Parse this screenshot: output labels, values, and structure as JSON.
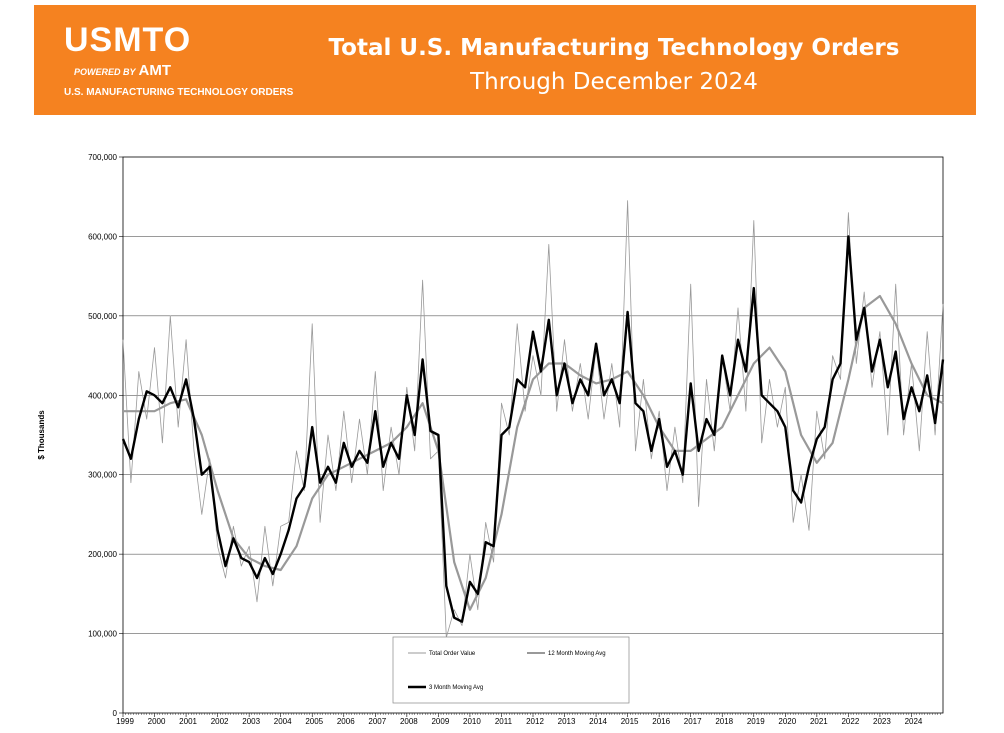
{
  "header": {
    "logo_text": "USMTO",
    "powered_by": "POWERED BY",
    "powered_brand": "AMT",
    "tagline": "U.S. MANUFACTURING TECHNOLOGY ORDERS",
    "title": "Total U.S. Manufacturing Technology Orders",
    "subtitle": "Through December 2024",
    "banner_color": "#f58220"
  },
  "chart_data": {
    "type": "line",
    "title": "Total U.S. Manufacturing Technology Orders",
    "xlabel": "",
    "ylabel": "$ Thousands",
    "xlim": [
      1999,
      2025
    ],
    "ylim": [
      0,
      700000
    ],
    "y_ticks": [
      0,
      100000,
      200000,
      300000,
      400000,
      500000,
      600000,
      700000
    ],
    "y_tick_labels": [
      "0",
      "100,000",
      "200,000",
      "300,000",
      "400,000",
      "500,000",
      "600,000",
      "700,000"
    ],
    "x_tick_labels": [
      "1999",
      "2000",
      "2001",
      "2002",
      "2003",
      "2004",
      "2005",
      "2006",
      "2007",
      "2008",
      "2009",
      "2010",
      "2011",
      "2012",
      "2013",
      "2014",
      "2015",
      "2016",
      "2017",
      "2018",
      "2019",
      "2020",
      "2021",
      "2022",
      "2023",
      "2024"
    ],
    "grid": true,
    "legend_position": "bottom-center",
    "series": [
      {
        "name": "Total Order Value",
        "color": "#999999",
        "style": "thin",
        "x": [
          1999.0,
          1999.25,
          1999.5,
          1999.75,
          2000.0,
          2000.25,
          2000.5,
          2000.75,
          2001.0,
          2001.25,
          2001.5,
          2001.75,
          2002.0,
          2002.25,
          2002.5,
          2002.75,
          2003.0,
          2003.25,
          2003.5,
          2003.75,
          2004.0,
          2004.25,
          2004.5,
          2004.75,
          2005.0,
          2005.25,
          2005.5,
          2005.75,
          2006.0,
          2006.25,
          2006.5,
          2006.75,
          2007.0,
          2007.25,
          2007.5,
          2007.75,
          2008.0,
          2008.25,
          2008.5,
          2008.75,
          2009.0,
          2009.25,
          2009.5,
          2009.75,
          2010.0,
          2010.25,
          2010.5,
          2010.75,
          2011.0,
          2011.25,
          2011.5,
          2011.75,
          2012.0,
          2012.25,
          2012.5,
          2012.75,
          2013.0,
          2013.25,
          2013.5,
          2013.75,
          2014.0,
          2014.25,
          2014.5,
          2014.75,
          2015.0,
          2015.25,
          2015.5,
          2015.75,
          2016.0,
          2016.25,
          2016.5,
          2016.75,
          2017.0,
          2017.25,
          2017.5,
          2017.75,
          2018.0,
          2018.25,
          2018.5,
          2018.75,
          2019.0,
          2019.25,
          2019.5,
          2019.75,
          2020.0,
          2020.25,
          2020.5,
          2020.75,
          2021.0,
          2021.25,
          2021.5,
          2021.75,
          2022.0,
          2022.25,
          2022.5,
          2022.75,
          2023.0,
          2023.25,
          2023.5,
          2023.75,
          2024.0,
          2024.25,
          2024.5,
          2024.75,
          2025.0
        ],
        "y": [
          470000,
          290000,
          430000,
          370000,
          460000,
          340000,
          500000,
          360000,
          470000,
          330000,
          250000,
          320000,
          210000,
          170000,
          235000,
          185000,
          210000,
          140000,
          235000,
          160000,
          235000,
          240000,
          330000,
          280000,
          490000,
          240000,
          350000,
          280000,
          380000,
          290000,
          370000,
          300000,
          430000,
          280000,
          360000,
          300000,
          410000,
          330000,
          545000,
          320000,
          330000,
          95000,
          130000,
          110000,
          200000,
          130000,
          240000,
          190000,
          390000,
          350000,
          490000,
          380000,
          450000,
          400000,
          590000,
          380000,
          470000,
          380000,
          440000,
          370000,
          460000,
          370000,
          440000,
          360000,
          645000,
          330000,
          420000,
          320000,
          380000,
          280000,
          360000,
          290000,
          540000,
          260000,
          420000,
          330000,
          450000,
          380000,
          510000,
          380000,
          620000,
          340000,
          420000,
          360000,
          410000,
          240000,
          300000,
          230000,
          380000,
          320000,
          450000,
          420000,
          630000,
          440000,
          530000,
          410000,
          480000,
          350000,
          540000,
          350000,
          440000,
          330000,
          480000,
          350000,
          515000
        ]
      },
      {
        "name": "12 Month Moving Avg",
        "color": "#999999",
        "style": "medium",
        "x": [
          1999.0,
          1999.5,
          2000.0,
          2000.5,
          2001.0,
          2001.5,
          2002.0,
          2002.5,
          2003.0,
          2003.5,
          2004.0,
          2004.5,
          2005.0,
          2005.5,
          2006.0,
          2006.5,
          2007.0,
          2007.5,
          2008.0,
          2008.5,
          2009.0,
          2009.5,
          2010.0,
          2010.5,
          2011.0,
          2011.5,
          2012.0,
          2012.5,
          2013.0,
          2013.5,
          2014.0,
          2014.5,
          2015.0,
          2015.5,
          2016.0,
          2016.5,
          2017.0,
          2017.5,
          2018.0,
          2018.5,
          2019.0,
          2019.5,
          2020.0,
          2020.5,
          2021.0,
          2021.5,
          2022.0,
          2022.5,
          2023.0,
          2023.5,
          2024.0,
          2024.5,
          2025.0
        ],
        "y": [
          380000,
          380000,
          380000,
          390000,
          395000,
          350000,
          280000,
          220000,
          195000,
          185000,
          180000,
          210000,
          270000,
          300000,
          310000,
          320000,
          330000,
          340000,
          360000,
          390000,
          330000,
          190000,
          130000,
          170000,
          250000,
          360000,
          420000,
          440000,
          440000,
          425000,
          415000,
          420000,
          430000,
          400000,
          360000,
          330000,
          330000,
          345000,
          360000,
          400000,
          440000,
          460000,
          430000,
          350000,
          315000,
          340000,
          420000,
          510000,
          525000,
          490000,
          440000,
          400000,
          390000
        ]
      },
      {
        "name": "3 Month Moving Avg",
        "color": "#000000",
        "style": "thick",
        "x": [
          1999.0,
          1999.25,
          1999.5,
          1999.75,
          2000.0,
          2000.25,
          2000.5,
          2000.75,
          2001.0,
          2001.25,
          2001.5,
          2001.75,
          2002.0,
          2002.25,
          2002.5,
          2002.75,
          2003.0,
          2003.25,
          2003.5,
          2003.75,
          2004.0,
          2004.25,
          2004.5,
          2004.75,
          2005.0,
          2005.25,
          2005.5,
          2005.75,
          2006.0,
          2006.25,
          2006.5,
          2006.75,
          2007.0,
          2007.25,
          2007.5,
          2007.75,
          2008.0,
          2008.25,
          2008.5,
          2008.75,
          2009.0,
          2009.25,
          2009.5,
          2009.75,
          2010.0,
          2010.25,
          2010.5,
          2010.75,
          2011.0,
          2011.25,
          2011.5,
          2011.75,
          2012.0,
          2012.25,
          2012.5,
          2012.75,
          2013.0,
          2013.25,
          2013.5,
          2013.75,
          2014.0,
          2014.25,
          2014.5,
          2014.75,
          2015.0,
          2015.25,
          2015.5,
          2015.75,
          2016.0,
          2016.25,
          2016.5,
          2016.75,
          2017.0,
          2017.25,
          2017.5,
          2017.75,
          2018.0,
          2018.25,
          2018.5,
          2018.75,
          2019.0,
          2019.25,
          2019.5,
          2019.75,
          2020.0,
          2020.25,
          2020.5,
          2020.75,
          2021.0,
          2021.25,
          2021.5,
          2021.75,
          2022.0,
          2022.25,
          2022.5,
          2022.75,
          2023.0,
          2023.25,
          2023.5,
          2023.75,
          2024.0,
          2024.25,
          2024.5,
          2024.75,
          2025.0
        ],
        "y": [
          345000,
          320000,
          370000,
          405000,
          400000,
          390000,
          410000,
          385000,
          420000,
          370000,
          300000,
          310000,
          230000,
          185000,
          220000,
          195000,
          190000,
          170000,
          195000,
          175000,
          200000,
          230000,
          270000,
          285000,
          360000,
          290000,
          310000,
          290000,
          340000,
          310000,
          330000,
          315000,
          380000,
          310000,
          340000,
          320000,
          400000,
          350000,
          445000,
          355000,
          350000,
          160000,
          120000,
          115000,
          165000,
          150000,
          215000,
          210000,
          350000,
          360000,
          420000,
          410000,
          480000,
          430000,
          495000,
          400000,
          440000,
          390000,
          420000,
          400000,
          465000,
          400000,
          420000,
          390000,
          505000,
          390000,
          380000,
          330000,
          370000,
          310000,
          330000,
          300000,
          415000,
          330000,
          370000,
          350000,
          450000,
          400000,
          470000,
          430000,
          535000,
          400000,
          390000,
          380000,
          360000,
          280000,
          265000,
          310000,
          345000,
          360000,
          420000,
          440000,
          600000,
          470000,
          510000,
          430000,
          470000,
          410000,
          455000,
          370000,
          410000,
          380000,
          425000,
          365000,
          445000
        ]
      }
    ]
  }
}
